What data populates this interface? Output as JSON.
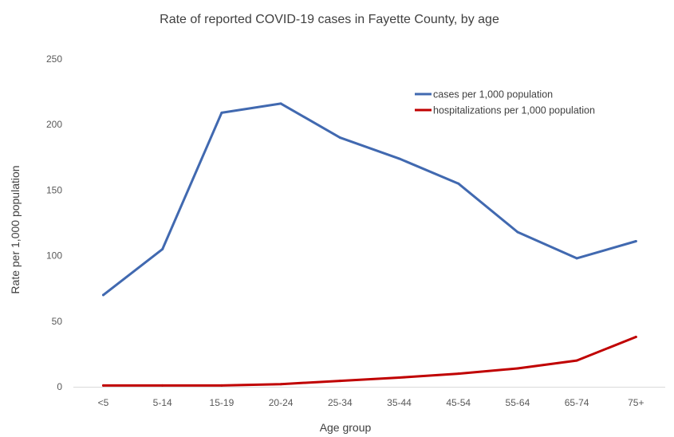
{
  "chart_data": {
    "type": "line",
    "title": "Rate of reported COVID-19 cases in Fayette County, by age",
    "xlabel": "Age group",
    "ylabel": "Rate per 1,000 population",
    "categories": [
      "<5",
      "5-14",
      "15-19",
      "20-24",
      "25-34",
      "35-44",
      "45-54",
      "55-64",
      "65-74",
      "75+"
    ],
    "ylim": [
      0,
      250
    ],
    "yticks": [
      0,
      50,
      100,
      150,
      200,
      250
    ],
    "grid": false,
    "legend_position": "top-right",
    "series": [
      {
        "name": "cases per 1,000 population",
        "color": "#4169B0",
        "values": [
          70,
          105,
          209,
          216,
          190,
          174,
          155,
          118,
          98,
          111
        ]
      },
      {
        "name": "hospitalizations per 1,000 population",
        "color": "#C00000",
        "values": [
          1,
          1,
          1,
          2,
          4.5,
          7,
          10,
          14,
          20,
          38
        ]
      }
    ]
  }
}
